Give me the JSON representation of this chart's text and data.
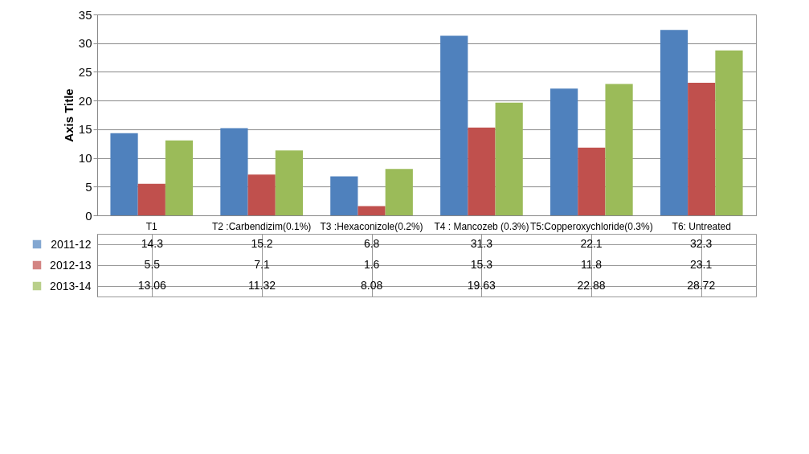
{
  "chart_data": {
    "type": "bar",
    "ylabel": "Axis Title",
    "categories": [
      "T1",
      "T2 :Carbendizim(0.1%)",
      "T3 :Hexaconizole(0.2%)",
      "T4 : Mancozeb (0.3%)",
      "T5:Copperoxychloride(0.3%)",
      "T6: Untreated"
    ],
    "series": [
      {
        "name": "2011-12",
        "color": "#4f81bd",
        "values": [
          14.3,
          15.2,
          6.8,
          31.3,
          22.1,
          32.3
        ]
      },
      {
        "name": "2012-13",
        "color": "#c0504d",
        "values": [
          5.5,
          7.1,
          1.6,
          15.3,
          11.8,
          23.1
        ]
      },
      {
        "name": "2013-14",
        "color": "#9bbb59",
        "values": [
          13.06,
          11.32,
          8.08,
          19.63,
          22.88,
          28.72
        ]
      }
    ],
    "ylim": [
      0,
      35
    ],
    "yticks": [
      0,
      5,
      10,
      15,
      20,
      25,
      30,
      35
    ],
    "grid": "y",
    "data_labels": true,
    "legend": "bottom"
  }
}
